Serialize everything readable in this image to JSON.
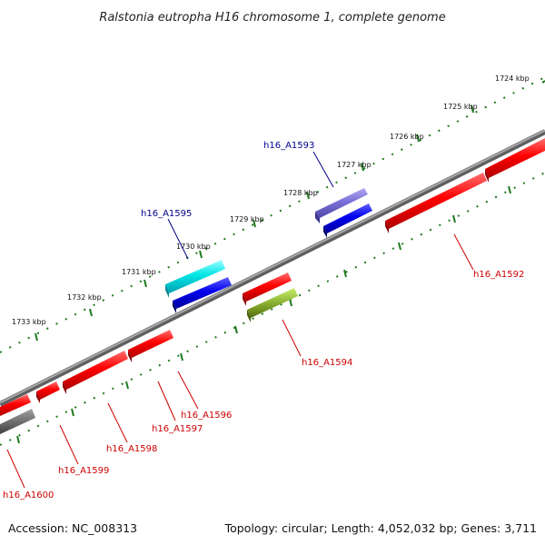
{
  "title": "Ralstonia eutropha H16 chromosome 1, complete genome",
  "footer": {
    "accession": "Accession: NC_008313",
    "summary": "Topology: circular; Length: 4,052,032 bp; Genes: 3,711"
  },
  "ticks": [
    {
      "label": "1724 kbp"
    },
    {
      "label": "1725 kbp"
    },
    {
      "label": "1726 kbp"
    },
    {
      "label": "1727 kbp"
    },
    {
      "label": "1728 kbp"
    },
    {
      "label": "1729 kbp"
    },
    {
      "label": "1730 kbp"
    },
    {
      "label": "1731 kbp"
    },
    {
      "label": "1732 kbp"
    },
    {
      "label": "1733 kbp"
    }
  ],
  "genes": [
    {
      "name": "h16_A1592",
      "color": "#dd0000"
    },
    {
      "name": "h16_A1593",
      "color": "#0000aa"
    },
    {
      "name": "h16_A1594",
      "color": "#dd0000"
    },
    {
      "name": "h16_A1595",
      "color": "#0000aa"
    },
    {
      "name": "h16_A1596",
      "color": "#dd0000"
    },
    {
      "name": "h16_A1597",
      "color": "#dd0000"
    },
    {
      "name": "h16_A1598",
      "color": "#dd0000"
    },
    {
      "name": "h16_A1599",
      "color": "#dd0000"
    },
    {
      "name": "h16_A1600",
      "color": "#dd0000"
    }
  ],
  "colors": {
    "forward_strand": "#0000ee",
    "reverse_strand": "#ee0000",
    "backbone": "#808080",
    "tick": "#007700"
  }
}
